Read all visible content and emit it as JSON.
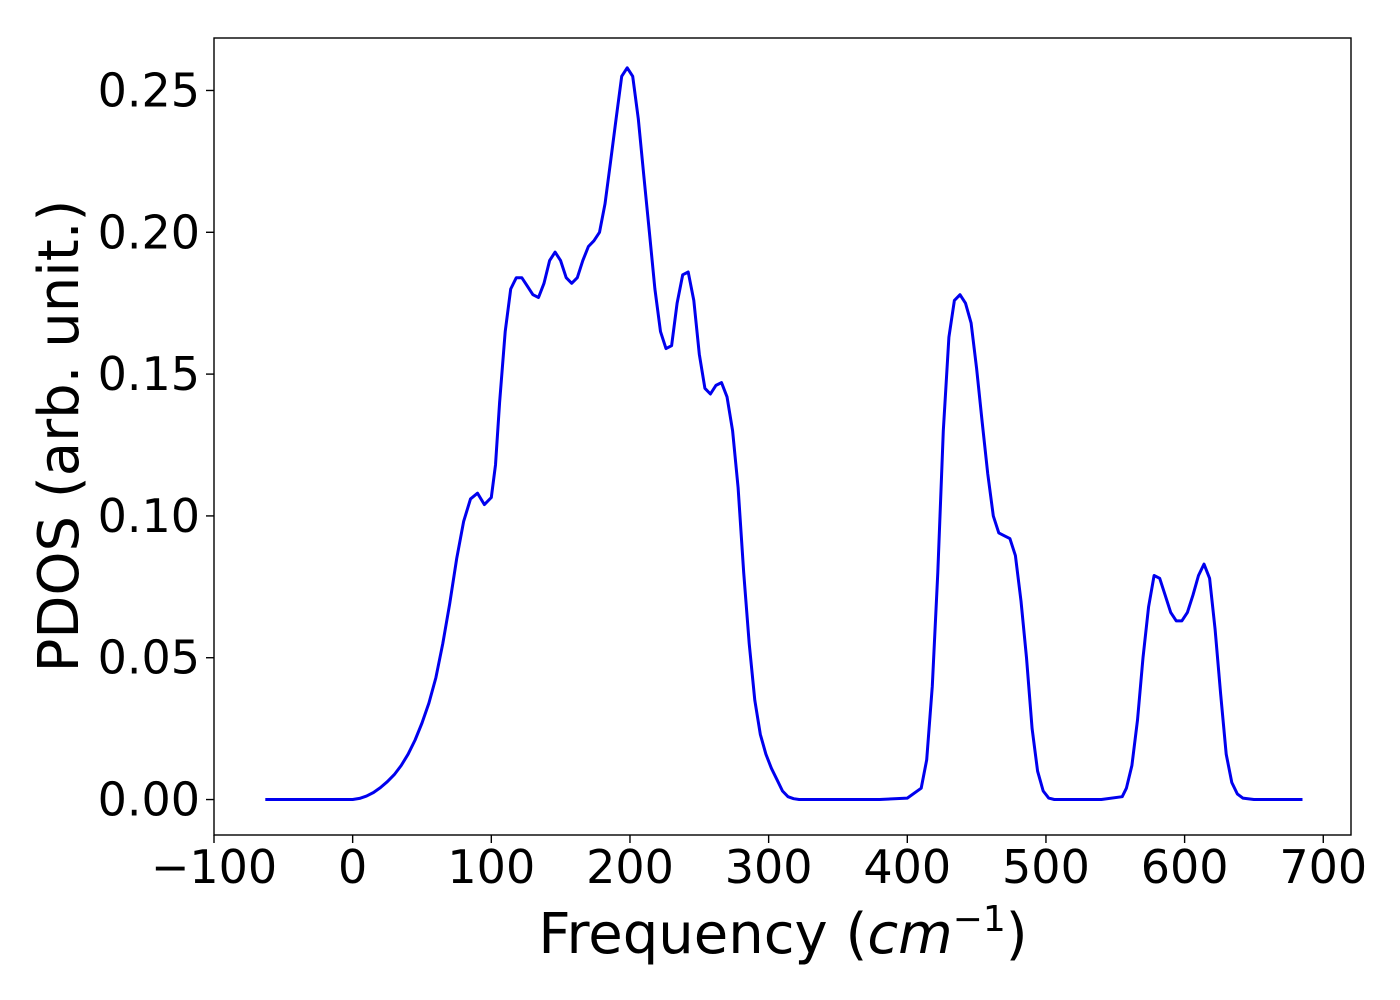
{
  "chart_data": {
    "type": "line",
    "title": "",
    "xlabel": "Frequency (",
    "xlabel_math_base": "cm",
    "xlabel_math_sup": "−1",
    "xlabel_close": ")",
    "ylabel": "PDOS (arb. unit.)",
    "xlim": [
      -100,
      720
    ],
    "ylim": [
      -0.0125,
      0.2685
    ],
    "xticks": [
      -100,
      0,
      100,
      200,
      300,
      400,
      500,
      600,
      700
    ],
    "xtick_labels": [
      "−100",
      "0",
      "100",
      "200",
      "300",
      "400",
      "500",
      "600",
      "700"
    ],
    "yticks": [
      0.0,
      0.05,
      0.1,
      0.15,
      0.2,
      0.25
    ],
    "ytick_labels": [
      "0.00",
      "0.05",
      "0.10",
      "0.15",
      "0.20",
      "0.25"
    ],
    "grid": false,
    "line_color": "#0000ee",
    "series": [
      {
        "x": [
          -63,
          -50,
          -30,
          -10,
          0,
          5,
          10,
          15,
          20,
          25,
          30,
          35,
          40,
          45,
          50,
          55,
          60,
          65,
          70,
          75,
          80,
          85,
          90,
          95,
          100,
          103,
          106,
          110,
          114,
          118,
          122,
          126,
          130,
          134,
          138,
          142,
          146,
          150,
          154,
          158,
          162,
          166,
          170,
          174,
          178,
          182,
          186,
          190,
          194,
          198,
          202,
          206,
          210,
          214,
          218,
          222,
          226,
          230,
          234,
          238,
          242,
          246,
          250,
          254,
          258,
          262,
          266,
          270,
          274,
          278,
          282,
          286,
          290,
          294,
          298,
          302,
          306,
          310,
          314,
          318,
          322,
          326,
          330,
          340,
          360,
          380,
          400,
          410,
          414,
          418,
          422,
          426,
          430,
          434,
          438,
          442,
          446,
          450,
          454,
          458,
          462,
          466,
          470,
          474,
          478,
          482,
          486,
          490,
          494,
          498,
          502,
          506,
          510,
          520,
          540,
          555,
          558,
          562,
          566,
          570,
          574,
          578,
          582,
          586,
          590,
          594,
          598,
          602,
          606,
          610,
          614,
          618,
          622,
          626,
          630,
          634,
          638,
          642,
          650,
          670,
          685
        ],
        "y": [
          0.0,
          0.0,
          0.0,
          0.0,
          0.0,
          0.0004,
          0.0012,
          0.0025,
          0.0042,
          0.0063,
          0.0088,
          0.012,
          0.016,
          0.021,
          0.027,
          0.034,
          0.043,
          0.055,
          0.069,
          0.085,
          0.098,
          0.106,
          0.108,
          0.104,
          0.1065,
          0.118,
          0.14,
          0.165,
          0.18,
          0.184,
          0.184,
          0.181,
          0.178,
          0.177,
          0.182,
          0.19,
          0.193,
          0.19,
          0.184,
          0.182,
          0.184,
          0.19,
          0.195,
          0.197,
          0.2,
          0.21,
          0.225,
          0.24,
          0.255,
          0.258,
          0.255,
          0.24,
          0.22,
          0.2,
          0.18,
          0.165,
          0.159,
          0.16,
          0.175,
          0.185,
          0.186,
          0.176,
          0.157,
          0.145,
          0.143,
          0.146,
          0.147,
          0.142,
          0.13,
          0.11,
          0.08,
          0.055,
          0.035,
          0.023,
          0.016,
          0.011,
          0.007,
          0.003,
          0.001,
          0.0003,
          0.0,
          0.0,
          0.0,
          0.0,
          0.0,
          0.0,
          0.0005,
          0.004,
          0.014,
          0.04,
          0.08,
          0.13,
          0.163,
          0.176,
          0.178,
          0.175,
          0.168,
          0.152,
          0.133,
          0.115,
          0.1,
          0.094,
          0.093,
          0.092,
          0.086,
          0.07,
          0.05,
          0.025,
          0.01,
          0.003,
          0.0005,
          0.0,
          0.0,
          0.0,
          0.0,
          0.001,
          0.004,
          0.012,
          0.028,
          0.05,
          0.068,
          0.079,
          0.078,
          0.072,
          0.066,
          0.063,
          0.063,
          0.066,
          0.072,
          0.079,
          0.083,
          0.078,
          0.06,
          0.037,
          0.016,
          0.006,
          0.002,
          0.0005,
          0.0,
          0.0,
          0.0
        ]
      }
    ]
  }
}
